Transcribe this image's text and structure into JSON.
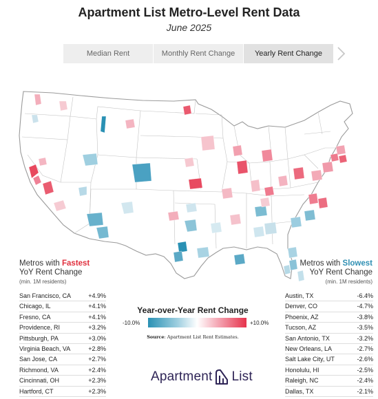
{
  "header": {
    "title": "Apartment List Metro-Level Rent Data",
    "subtitle": "June 2025"
  },
  "tabs": [
    {
      "label": "Median Rent",
      "active": false
    },
    {
      "label": "Monthly Rent Change",
      "active": false
    },
    {
      "label": "Yearly Rent Change",
      "active": true
    }
  ],
  "nav": {
    "next_icon": "chevron-right-icon"
  },
  "fastest": {
    "prefix": "Metros with ",
    "highlight": "Fastest",
    "line2": "YoY Rent Change",
    "note": "(min. 1M residents)",
    "highlight_color": "#e0303e",
    "rows": [
      {
        "metro": "San Francisco, CA",
        "value": "+4.9%"
      },
      {
        "metro": "Chicago, IL",
        "value": "+4.1%"
      },
      {
        "metro": "Fresno, CA",
        "value": "+4.1%"
      },
      {
        "metro": "Providence, RI",
        "value": "+3.2%"
      },
      {
        "metro": "Pittsburgh, PA",
        "value": "+3.0%"
      },
      {
        "metro": "Virginia Beach, VA",
        "value": "+2.8%"
      },
      {
        "metro": "San Jose, CA",
        "value": "+2.7%"
      },
      {
        "metro": "Richmond, VA",
        "value": "+2.4%"
      },
      {
        "metro": "Cincinnati, OH",
        "value": "+2.3%"
      },
      {
        "metro": "Hartford, CT",
        "value": "+2.3%"
      }
    ]
  },
  "slowest": {
    "prefix": "Metros with ",
    "highlight": "Slowest",
    "line2": "YoY Rent Change",
    "note": "(min. 1M residents)",
    "highlight_color": "#2f8fb3",
    "rows": [
      {
        "metro": "Austin, TX",
        "value": "-6.4%"
      },
      {
        "metro": "Denver, CO",
        "value": "-4.7%"
      },
      {
        "metro": "Phoenix, AZ",
        "value": "-3.8%"
      },
      {
        "metro": "Tucson, AZ",
        "value": "-3.5%"
      },
      {
        "metro": "San Antonio, TX",
        "value": "-3.2%"
      },
      {
        "metro": "New Orleans, LA",
        "value": "-2.7%"
      },
      {
        "metro": "Salt Lake City, UT",
        "value": "-2.6%"
      },
      {
        "metro": "Honolulu, HI",
        "value": "-2.5%"
      },
      {
        "metro": "Raleigh, NC",
        "value": "-2.4%"
      },
      {
        "metro": "Dallas, TX",
        "value": "-2.1%"
      }
    ]
  },
  "legend": {
    "title": "Year-over-Year Rent Change",
    "min_label": "-10.0%",
    "max_label": "+10.0%",
    "scale": {
      "min": -10.0,
      "max": 10.0
    },
    "colors": {
      "negative": "#2a91b4",
      "neutral": "#ffffff",
      "positive": "#e6334c"
    }
  },
  "source": {
    "label": "Source",
    "text": ": Apartment List Rent Estimates."
  },
  "brand": {
    "left": "Apartment",
    "right": "List",
    "color": "#2e2456"
  },
  "map": {
    "metros": [
      {
        "name": "San Francisco, CA",
        "change": 4.9
      },
      {
        "name": "Chicago, IL",
        "change": 4.1
      },
      {
        "name": "Fresno, CA",
        "change": 4.1
      },
      {
        "name": "Providence, RI",
        "change": 3.2
      },
      {
        "name": "Pittsburgh, PA",
        "change": 3.0
      },
      {
        "name": "Virginia Beach, VA",
        "change": 2.8
      },
      {
        "name": "San Jose, CA",
        "change": 2.7
      },
      {
        "name": "Richmond, VA",
        "change": 2.4
      },
      {
        "name": "Cincinnati, OH",
        "change": 2.3
      },
      {
        "name": "Hartford, CT",
        "change": 2.3
      },
      {
        "name": "Austin, TX",
        "change": -6.4
      },
      {
        "name": "Denver, CO",
        "change": -4.7
      },
      {
        "name": "Phoenix, AZ",
        "change": -3.8
      },
      {
        "name": "Tucson, AZ",
        "change": -3.5
      },
      {
        "name": "San Antonio, TX",
        "change": -3.2
      },
      {
        "name": "New Orleans, LA",
        "change": -2.7
      },
      {
        "name": "Salt Lake City, UT",
        "change": -2.6
      },
      {
        "name": "Raleigh, NC",
        "change": -2.4
      },
      {
        "name": "Dallas, TX",
        "change": -2.1
      }
    ]
  }
}
